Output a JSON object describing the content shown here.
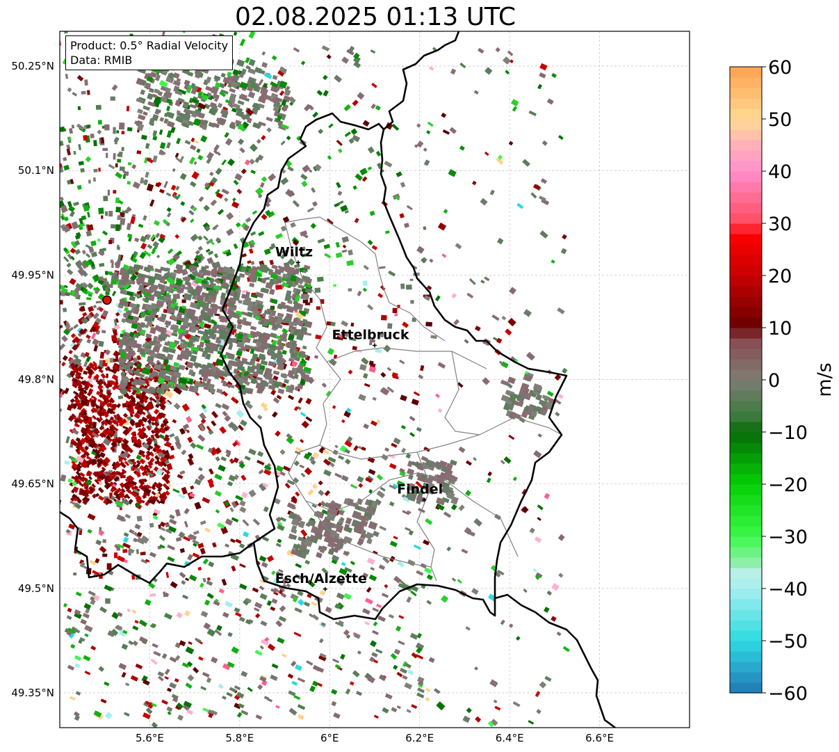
{
  "title": "02.08.2025 01:13 UTC",
  "info": {
    "product": "Product: 0.5° Radial Velocity",
    "data": "Data: RMIB"
  },
  "map": {
    "lon_range": [
      5.4,
      6.8
    ],
    "lat_range": [
      49.3,
      50.3
    ],
    "x_ticks": [
      {
        "value": 5.6,
        "label": "5.6°E"
      },
      {
        "value": 5.8,
        "label": "5.8°E"
      },
      {
        "value": 6.0,
        "label": "6°E"
      },
      {
        "value": 6.2,
        "label": "6.2°E"
      },
      {
        "value": 6.4,
        "label": "6.4°E"
      },
      {
        "value": 6.6,
        "label": "6.6°E"
      }
    ],
    "y_ticks": [
      {
        "value": 50.25,
        "label": "50.25°N"
      },
      {
        "value": 50.1,
        "label": "50.1°N"
      },
      {
        "value": 49.95,
        "label": "49.95°N"
      },
      {
        "value": 49.8,
        "label": "49.8°N"
      },
      {
        "value": 49.65,
        "label": "49.65°N"
      },
      {
        "value": 49.5,
        "label": "49.5°N"
      },
      {
        "value": 49.35,
        "label": "49.35°N"
      }
    ],
    "radar_site": {
      "lon": 5.505,
      "lat": 49.914
    },
    "cities": [
      {
        "name": "Wiltz",
        "lon": 5.93,
        "lat": 49.968
      },
      {
        "name": "Ettelbruck",
        "lon": 6.1,
        "lat": 49.849
      },
      {
        "name": "Findel",
        "lon": 6.21,
        "lat": 49.627
      },
      {
        "name": "Esch/Alzette",
        "lon": 5.99,
        "lat": 49.499
      }
    ]
  },
  "colorbar": {
    "label": "m/s",
    "min": -60,
    "max": 60,
    "ticks": [
      {
        "value": 60,
        "label": "60"
      },
      {
        "value": 50,
        "label": "50"
      },
      {
        "value": 40,
        "label": "40"
      },
      {
        "value": 30,
        "label": "30"
      },
      {
        "value": 20,
        "label": "20"
      },
      {
        "value": 10,
        "label": "10"
      },
      {
        "value": 0,
        "label": "0"
      },
      {
        "value": -10,
        "label": "−10"
      },
      {
        "value": -20,
        "label": "−20"
      },
      {
        "value": -30,
        "label": "−30"
      },
      {
        "value": -40,
        "label": "−40"
      },
      {
        "value": -50,
        "label": "−50"
      },
      {
        "value": -60,
        "label": "−60"
      }
    ],
    "stops": [
      {
        "v": -60,
        "color": "#1f77b4"
      },
      {
        "v": -55,
        "color": "#2aa9cf"
      },
      {
        "v": -50,
        "color": "#2cdbe0"
      },
      {
        "v": -40,
        "color": "#a6eeef"
      },
      {
        "v": -37,
        "color": "#b8f0e8"
      },
      {
        "v": -35,
        "color": "#8ef0a8"
      },
      {
        "v": -30,
        "color": "#3cf84a"
      },
      {
        "v": -20,
        "color": "#05d005"
      },
      {
        "v": -10,
        "color": "#076b07"
      },
      {
        "v": -7,
        "color": "#3a7a3a"
      },
      {
        "v": 0,
        "color": "#7d7e75"
      },
      {
        "v": 8,
        "color": "#8a4950"
      },
      {
        "v": 10,
        "color": "#6a0000"
      },
      {
        "v": 20,
        "color": "#c80000"
      },
      {
        "v": 28,
        "color": "#ff0000"
      },
      {
        "v": 30,
        "color": "#ff4a5e"
      },
      {
        "v": 40,
        "color": "#ff8fcc"
      },
      {
        "v": 45,
        "color": "#ffb0b8"
      },
      {
        "v": 50,
        "color": "#ffda94"
      },
      {
        "v": 60,
        "color": "#ffa050"
      }
    ]
  },
  "colors": {
    "approaching_green": "#1a9a1a",
    "zero_gray": "#857073",
    "receding_red": "#7a0000",
    "border": "#000000",
    "canton_border": "#808080"
  }
}
